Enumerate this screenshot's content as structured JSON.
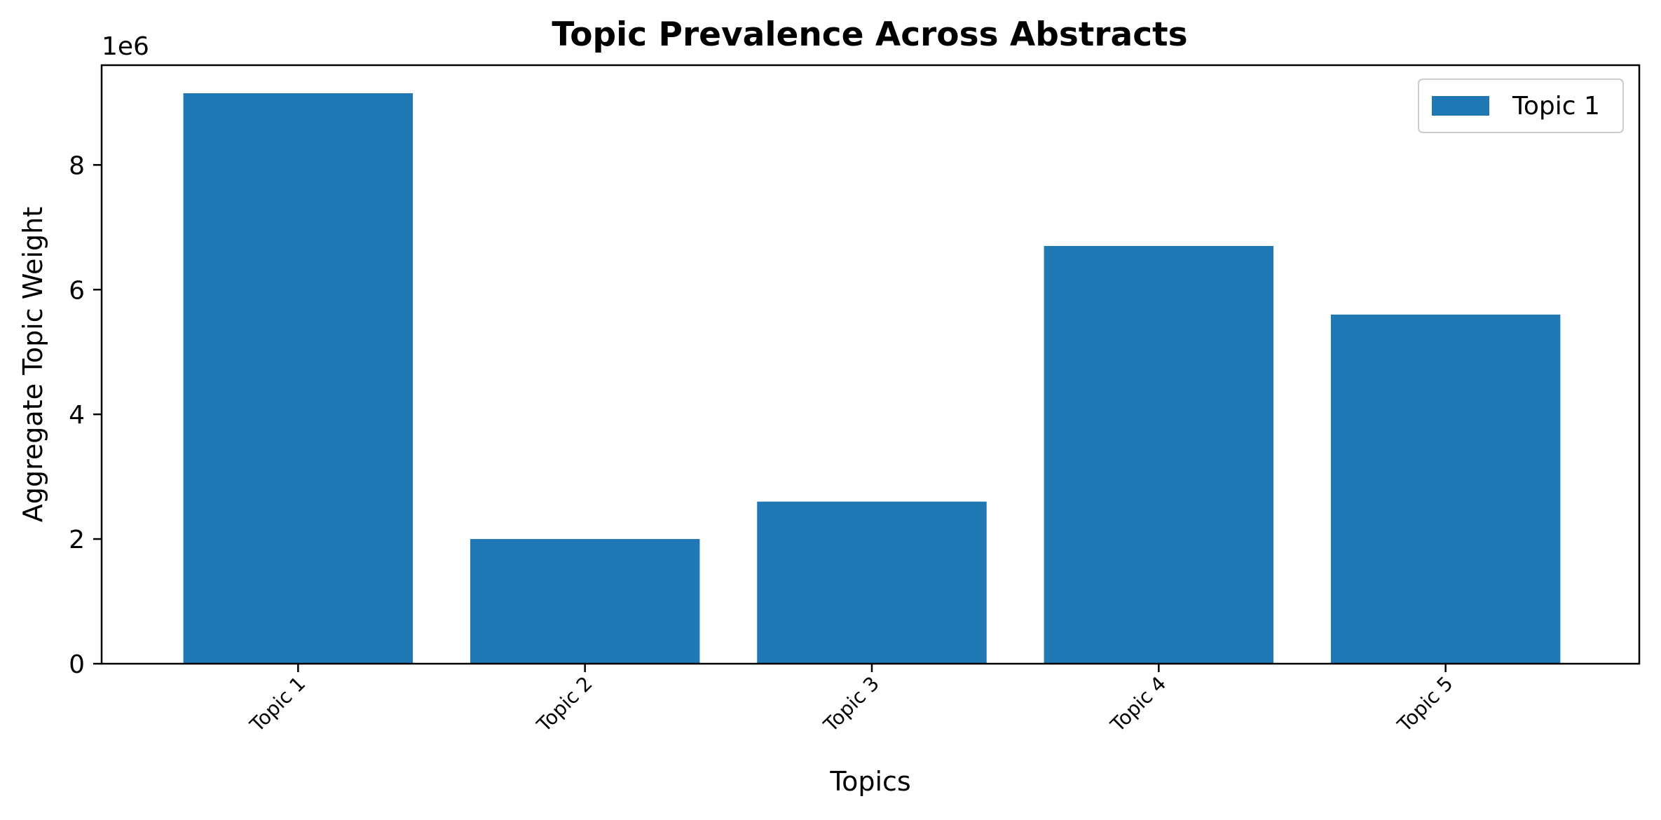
{
  "chart_data": {
    "type": "bar",
    "title": "Topic Prevalence Across Abstracts",
    "xlabel": "Topics",
    "ylabel": "Aggregate Topic Weight",
    "y_offset_label": "1e6",
    "y_scale_factor": 1000000,
    "categories": [
      "Topic 1",
      "Topic 2",
      "Topic 3",
      "Topic 4",
      "Topic 5"
    ],
    "series": [
      {
        "name": "Topic 1",
        "color": "#1f77b4",
        "values": [
          9150000,
          2000000,
          2600000,
          6700000,
          5600000
        ]
      }
    ],
    "ylim": [
      0,
      9600000
    ],
    "yticks": [
      0,
      2000000,
      4000000,
      6000000,
      8000000
    ],
    "ytick_labels": [
      "0",
      "2",
      "4",
      "6",
      "8"
    ],
    "legend": {
      "position": "top-right",
      "entries": [
        "Topic 1"
      ]
    },
    "grid": false
  }
}
